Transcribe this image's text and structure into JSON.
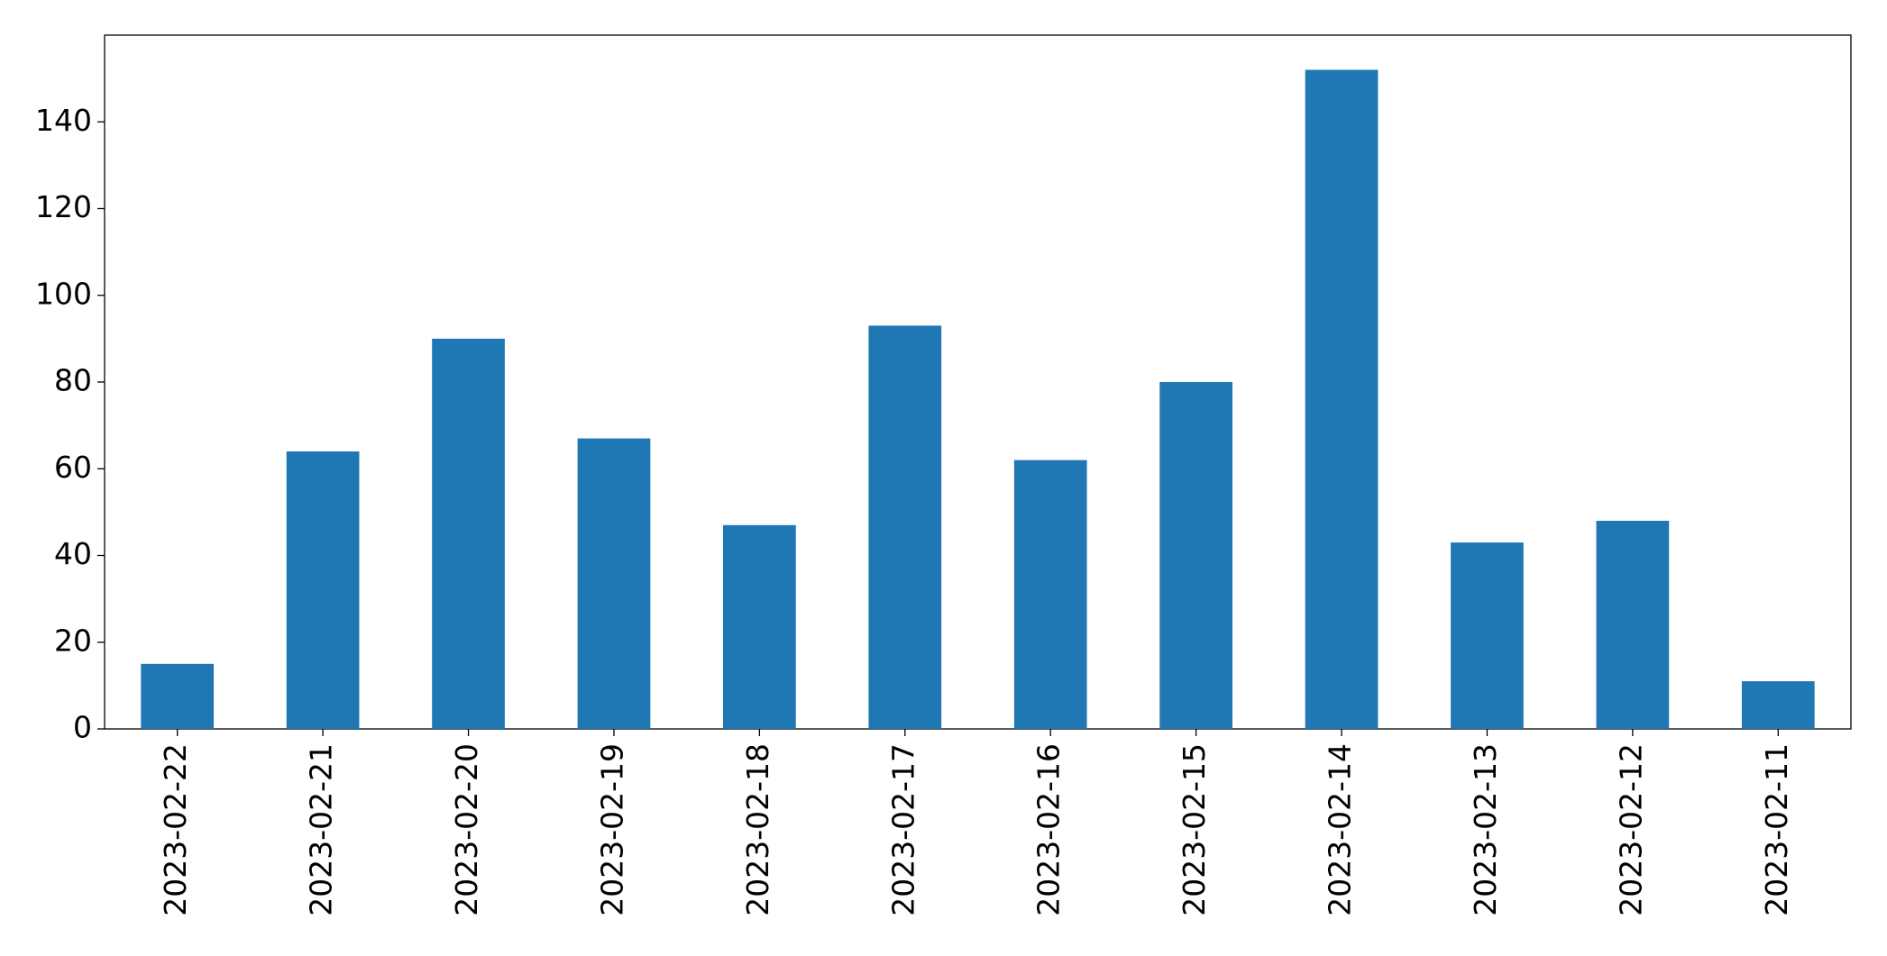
{
  "chart_data": {
    "type": "bar",
    "categories": [
      "2023-02-22",
      "2023-02-21",
      "2023-02-20",
      "2023-02-19",
      "2023-02-18",
      "2023-02-17",
      "2023-02-16",
      "2023-02-15",
      "2023-02-14",
      "2023-02-13",
      "2023-02-12",
      "2023-02-11"
    ],
    "values": [
      15,
      64,
      90,
      67,
      47,
      93,
      62,
      80,
      152,
      43,
      48,
      11
    ],
    "color": "#1f77b4",
    "ylim": [
      0,
      160
    ],
    "yticks": [
      0,
      20,
      40,
      60,
      80,
      100,
      120,
      140
    ],
    "grid": false
  }
}
